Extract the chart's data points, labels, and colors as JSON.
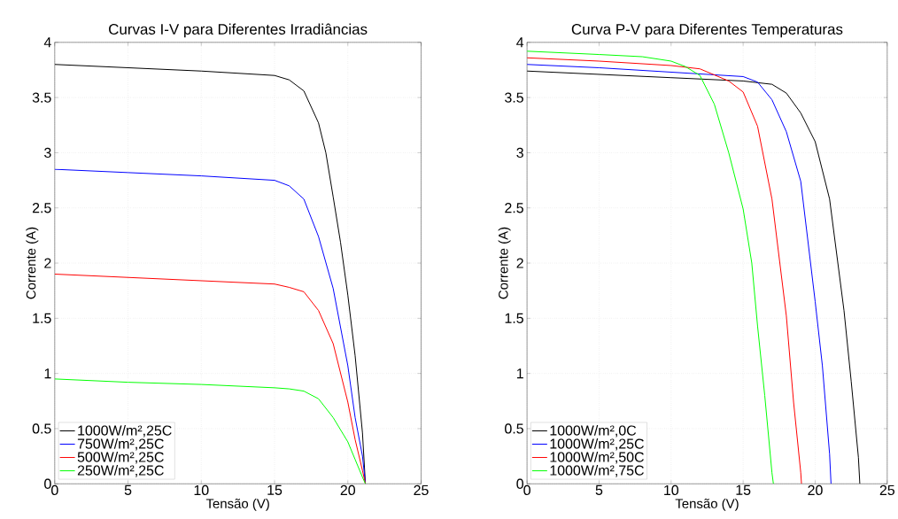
{
  "chart_data": [
    {
      "type": "line",
      "title": "Curvas I-V para Diferentes Irradiâncias",
      "xlabel": "Tensão (V)",
      "ylabel": "Corrente (A)",
      "xlim": [
        0,
        25
      ],
      "ylim": [
        0,
        4
      ],
      "xticks": [
        0,
        5,
        10,
        15,
        20,
        25
      ],
      "yticks": [
        0,
        0.5,
        1,
        1.5,
        2,
        2.5,
        3,
        3.5,
        4
      ],
      "grid": true,
      "legend": "bottom left",
      "line_style": "solid",
      "series": [
        {
          "name": "1000W/m²,25C",
          "color": "#000000",
          "x": [
            0,
            5,
            10,
            15,
            16,
            17,
            18,
            18.5,
            19,
            19.5,
            20,
            20.5,
            21,
            21.2
          ],
          "values": [
            3.8,
            3.77,
            3.74,
            3.7,
            3.66,
            3.56,
            3.27,
            3.0,
            2.6,
            2.19,
            1.71,
            1.16,
            0.46,
            0
          ]
        },
        {
          "name": "750W/m²,25C",
          "color": "#0000ff",
          "x": [
            0,
            5,
            10,
            15,
            16,
            17,
            18,
            19,
            20,
            20.5,
            21,
            21.2
          ],
          "values": [
            2.85,
            2.82,
            2.79,
            2.75,
            2.7,
            2.58,
            2.24,
            1.77,
            1.07,
            0.6,
            0.25,
            0
          ]
        },
        {
          "name": "500W/m²,25C",
          "color": "#ff0000",
          "x": [
            0,
            5,
            10,
            15,
            16,
            17,
            18,
            19,
            20,
            20.5,
            21,
            21.2
          ],
          "values": [
            1.9,
            1.87,
            1.84,
            1.81,
            1.78,
            1.74,
            1.57,
            1.27,
            0.74,
            0.4,
            0.12,
            0
          ]
        },
        {
          "name": "250W/m²,25C",
          "color": "#00ff00",
          "x": [
            0,
            5,
            10,
            15,
            16,
            17,
            18,
            19,
            20,
            20.5,
            21,
            21.2
          ],
          "values": [
            0.95,
            0.92,
            0.9,
            0.87,
            0.86,
            0.84,
            0.77,
            0.6,
            0.38,
            0.22,
            0.06,
            0
          ]
        }
      ]
    },
    {
      "type": "line",
      "title": "Curva P-V para Diferentes Temperaturas",
      "xlabel": "Tensão (V)",
      "ylabel": "Corrente (A)",
      "xlim": [
        0,
        25
      ],
      "ylim": [
        0,
        4
      ],
      "xticks": [
        0,
        5,
        10,
        15,
        20,
        25
      ],
      "yticks": [
        0,
        0.5,
        1,
        1.5,
        2,
        2.5,
        3,
        3.5,
        4
      ],
      "grid": true,
      "legend": "bottom left",
      "line_style": "solid",
      "series": [
        {
          "name": "1000W/m²,0C",
          "color": "#000000",
          "x": [
            0,
            10,
            15,
            17,
            18,
            19,
            20,
            21,
            22,
            22.5,
            23,
            23.1
          ],
          "values": [
            3.74,
            3.68,
            3.65,
            3.62,
            3.54,
            3.36,
            3.1,
            2.58,
            1.57,
            0.93,
            0.24,
            0
          ]
        },
        {
          "name": "1000W/m²,25C",
          "color": "#0000ff",
          "x": [
            0,
            5,
            10,
            15,
            16,
            17,
            18,
            19,
            20,
            20.5,
            21,
            21.1
          ],
          "values": [
            3.8,
            3.77,
            3.73,
            3.69,
            3.64,
            3.48,
            3.19,
            2.74,
            1.65,
            1.07,
            0.27,
            0
          ]
        },
        {
          "name": "1000W/m²,50C",
          "color": "#ff0000",
          "x": [
            0,
            5,
            10,
            12,
            14,
            15,
            16,
            17,
            18,
            18.5,
            19,
            19.05
          ],
          "values": [
            3.86,
            3.83,
            3.79,
            3.76,
            3.65,
            3.55,
            3.24,
            2.58,
            1.52,
            0.74,
            0.1,
            0
          ]
        },
        {
          "name": "1000W/m²,75C",
          "color": "#00ff00",
          "x": [
            0,
            5,
            8,
            10,
            11,
            12,
            13,
            14,
            15,
            15.6,
            16,
            16.5,
            17,
            17.1
          ],
          "values": [
            3.92,
            3.89,
            3.87,
            3.83,
            3.78,
            3.7,
            3.44,
            3.0,
            2.49,
            2.0,
            1.43,
            0.8,
            0.1,
            0
          ]
        }
      ]
    }
  ]
}
